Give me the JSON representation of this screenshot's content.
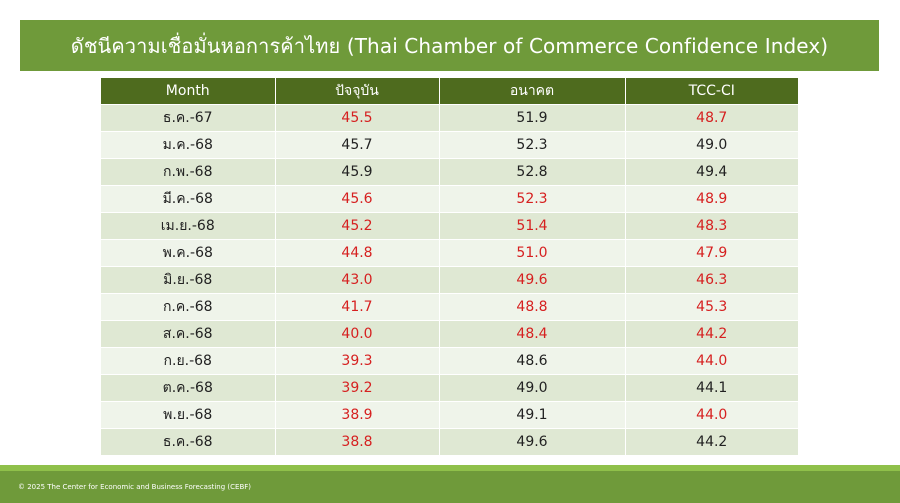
{
  "title": "ดัชนีความเชื่อมั่นหอการค้าไทย (Thai Chamber of Commerce Confidence Index)",
  "table": {
    "headers": [
      "Month",
      "ปัจจุบัน",
      "อนาคต",
      "TCC-CI"
    ],
    "rows": [
      {
        "month": "ธ.ค.-67",
        "current": "45.5",
        "future": "51.9",
        "tcc": "48.7"
      },
      {
        "month": "ม.ค.-68",
        "current": "45.7",
        "future": "52.3",
        "tcc": "49.0"
      },
      {
        "month": "ก.พ.-68",
        "current": "45.9",
        "future": "52.8",
        "tcc": "49.4"
      },
      {
        "month": "มี.ค.-68",
        "current": "45.6",
        "future": "52.3",
        "tcc": "48.9"
      },
      {
        "month": "เม.ย.-68",
        "current": "45.2",
        "future": "51.4",
        "tcc": "48.3"
      },
      {
        "month": "พ.ค.-68",
        "current": "44.8",
        "future": "51.0",
        "tcc": "47.9"
      },
      {
        "month": "มิ.ย.-68",
        "current": "43.0",
        "future": "49.6",
        "tcc": "46.3"
      },
      {
        "month": "ก.ค.-68",
        "current": "41.7",
        "future": "48.8",
        "tcc": "45.3"
      },
      {
        "month": "ส.ค.-68",
        "current": "40.0",
        "future": "48.4",
        "tcc": "44.2"
      },
      {
        "month": "ก.ย.-68",
        "current": "39.3",
        "future": "48.6",
        "tcc": "44.0"
      },
      {
        "month": "ต.ค.-68",
        "current": "39.2",
        "future": "49.0",
        "tcc": "44.1"
      },
      {
        "month": "พ.ย.-68",
        "current": "38.9",
        "future": "49.1",
        "tcc": "44.0"
      },
      {
        "month": "ธ.ค.-68",
        "current": "38.8",
        "future": "49.6",
        "tcc": "44.2"
      }
    ],
    "red_cells": {
      "current": [
        0,
        3,
        4,
        5,
        6,
        7,
        8,
        9,
        10,
        11,
        12
      ],
      "future": [
        3,
        4,
        5,
        6,
        7,
        8
      ],
      "tcc": [
        0,
        3,
        4,
        5,
        6,
        7,
        8,
        9,
        11
      ]
    }
  },
  "colors": {
    "title_bar": "#6f9a3a",
    "header_bg": "#4e6b1e",
    "row_odd": "#dfe8d3",
    "row_even": "#eff4ea",
    "negative_text": "#d62020"
  },
  "footer": {
    "text": "© 2025 The Center for Economic and Business Forecasting (CEBF)"
  }
}
